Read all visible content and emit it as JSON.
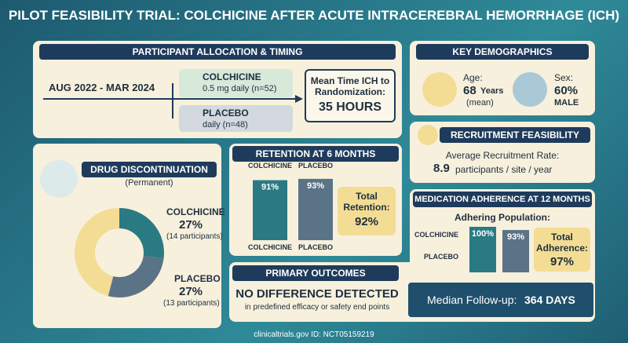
{
  "title": "PILOT FEASIBILITY TRIAL: COLCHICINE AFTER ACUTE INTRACEREBRAL HEMORRHAGE (ICH)",
  "allocation": {
    "header": "PARTICIPANT ALLOCATION & TIMING",
    "period": "AUG 2022 - MAR 2024",
    "arms": [
      {
        "name": "COLCHICINE",
        "detail": "0.5 mg daily (n=52)"
      },
      {
        "name": "PLACEBO",
        "detail": "daily (n=48)"
      }
    ],
    "mean_time_label": "Mean Time ICH to Randomization:",
    "mean_time_value": "35 HOURS"
  },
  "demographics": {
    "header": "KEY DEMOGRAPHICS",
    "age_label": "Age:",
    "age_value": "68",
    "age_unit": "Years",
    "age_note": "(mean)",
    "sex_label": "Sex:",
    "sex_value": "60%",
    "sex_note": "MALE"
  },
  "recruitment": {
    "header": "RECRUITMENT FEASIBILITY",
    "label": "Average Recruitment Rate:",
    "value": "8.9",
    "unit": "participants / site / year"
  },
  "discontinuation": {
    "header": "DRUG DISCONTINUATION",
    "subheader": "(Permanent)",
    "series": [
      {
        "name": "COLCHICINE",
        "value": 27,
        "value_label": "27%",
        "note": "(14 participants)",
        "color": "#2a7a84"
      },
      {
        "name": "PLACEBO",
        "value": 27,
        "value_label": "27%",
        "note": "(13 participants)",
        "color": "#5b7387"
      }
    ]
  },
  "retention": {
    "header": "RETENTION AT 6 MONTHS",
    "categories": [
      "COLCHICINE",
      "PLACEBO"
    ],
    "values": [
      91,
      93
    ],
    "value_labels": [
      "91%",
      "93%"
    ],
    "colors": [
      "#2a7a84",
      "#5b7387"
    ],
    "ylim": [
      0,
      100
    ],
    "total_label": "Total Retention:",
    "total_value": "92%"
  },
  "adherence": {
    "header": "MEDICATION ADHERENCE AT 12 MONTHS",
    "subheader": "Adhering Population:",
    "categories": [
      "COLCHICINE",
      "PLACEBO"
    ],
    "values": [
      100,
      93
    ],
    "value_labels": [
      "100%",
      "93%"
    ],
    "colors": [
      "#2a7a84",
      "#5b7387"
    ],
    "ylim": [
      0,
      100
    ],
    "total_label": "Total Adherence:",
    "total_value": "97%"
  },
  "outcomes": {
    "header": "PRIMARY OUTCOMES",
    "headline": "NO DIFFERENCE DETECTED",
    "detail": "in predefined efficacy or safety end points",
    "followup_label": "Median Follow-up:",
    "followup_value": "364 DAYS"
  },
  "footer": "clinicaltrials.gov ID: NCT05159219"
}
